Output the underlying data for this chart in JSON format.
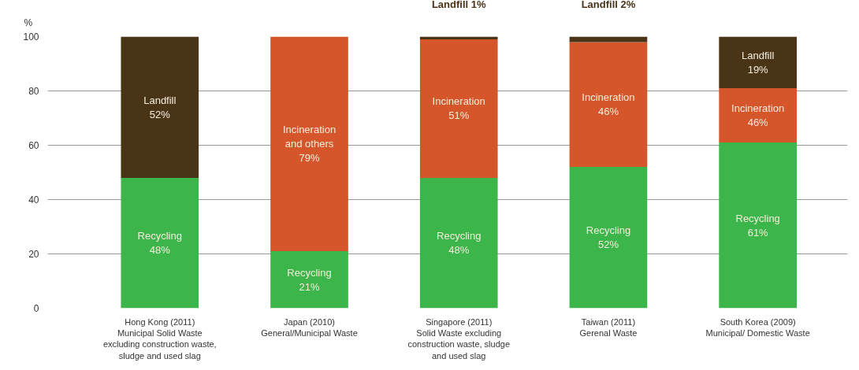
{
  "chart_data": {
    "type": "bar",
    "stacked": true,
    "ylabel": "%",
    "categories": [
      "Hong Kong (2011)\nMunicipal Solid Waste\nexcluding construction waste,\nsludge and used slag",
      "Japan (2010)\nGeneral/Municipal Waste",
      "Singapore (2011)\nSolid Waste excluding\nconstruction waste, sludge\nand used slag",
      "Taiwan (2011)\nGerenal Waste",
      "South Korea (2009)\nMunicipal/ Domestic Waste"
    ],
    "series": [
      {
        "color": "#3cb54a",
        "values": [
          48,
          21,
          48,
          52,
          61
        ],
        "value_labels": [
          "Recycling\n48%",
          "Recycling\n21%",
          "Recycling\n48%",
          "Recycling\n52%",
          "Recycling\n61%"
        ]
      },
      {
        "color": "#d4562a",
        "values": [
          null,
          79,
          51,
          46,
          20
        ],
        "value_labels": [
          null,
          "Incineration\nand others\n79%",
          "Incineration\n51%",
          "Incineration\n46%",
          "Incineration\n46%"
        ]
      },
      {
        "color": "#4a3418",
        "values": [
          52,
          null,
          1,
          2,
          19
        ],
        "value_labels": [
          "Landfill\n52%",
          null,
          "Landfill 1%",
          "Landfill 2%",
          "Landfill\n19%"
        ]
      }
    ],
    "ylim": [
      0,
      100
    ],
    "yticks": [
      0,
      20,
      40,
      60,
      80,
      100
    ],
    "grid": "y"
  }
}
